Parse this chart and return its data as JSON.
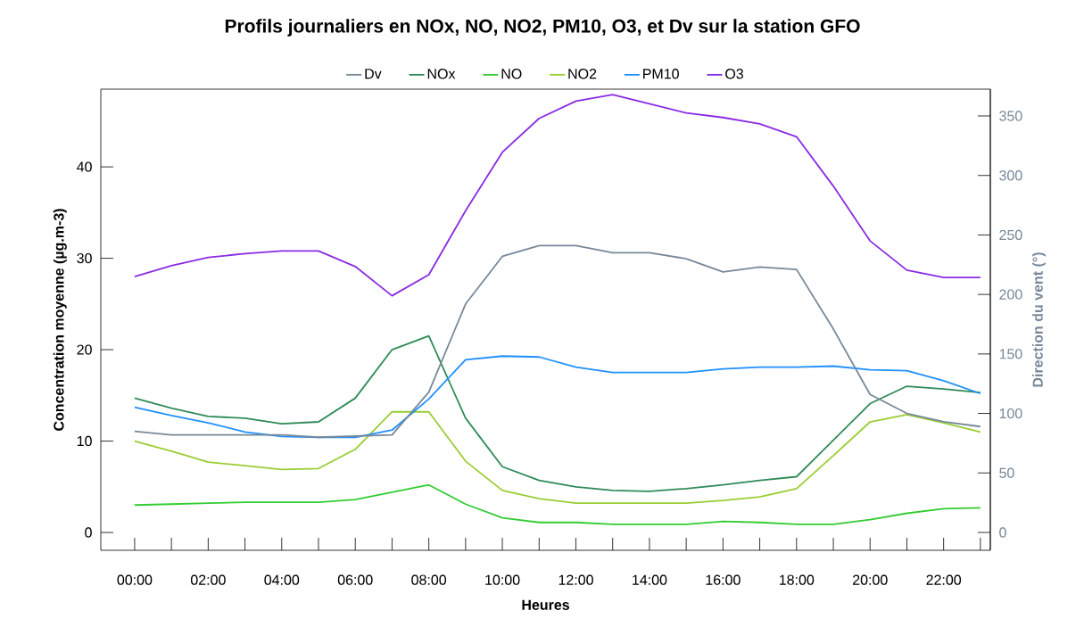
{
  "chart_data": {
    "type": "line",
    "title": "Profils journaliers en NOx, NO, NO2, PM10, O3,  et Dv sur la station GFO",
    "xlabel": "Heures",
    "ylabel": "Concentration moyenne (µg.m-3)",
    "y2label": "Direction du vent (°)",
    "x": [
      0,
      1,
      2,
      3,
      4,
      5,
      6,
      7,
      8,
      9,
      10,
      11,
      12,
      13,
      14,
      15,
      16,
      17,
      18,
      19,
      20,
      21,
      22,
      23
    ],
    "xlim": [
      -0.92,
      23.27
    ],
    "xticks": [
      {
        "value": 0,
        "label": "00:00"
      },
      {
        "value": 1,
        "label": null
      },
      {
        "value": 2,
        "label": "02:00"
      },
      {
        "value": 3,
        "label": null
      },
      {
        "value": 4,
        "label": "04:00"
      },
      {
        "value": 5,
        "label": null
      },
      {
        "value": 6,
        "label": "06:00"
      },
      {
        "value": 7,
        "label": null
      },
      {
        "value": 8,
        "label": "08:00"
      },
      {
        "value": 9,
        "label": null
      },
      {
        "value": 10,
        "label": "10:00"
      },
      {
        "value": 11,
        "label": null
      },
      {
        "value": 12,
        "label": "12:00"
      },
      {
        "value": 13,
        "label": null
      },
      {
        "value": 14,
        "label": "14:00"
      },
      {
        "value": 15,
        "label": null
      },
      {
        "value": 16,
        "label": "16:00"
      },
      {
        "value": 17,
        "label": null
      },
      {
        "value": 18,
        "label": "18:00"
      },
      {
        "value": 19,
        "label": null
      },
      {
        "value": 20,
        "label": "20:00"
      },
      {
        "value": 21,
        "label": null
      },
      {
        "value": 22,
        "label": "22:00"
      },
      {
        "value": 23,
        "label": null
      }
    ],
    "ylim": [
      -1.95,
      48.5
    ],
    "yticks": [
      0,
      10,
      20,
      30,
      40
    ],
    "y2lim": [
      -15,
      372.5
    ],
    "y2ticks": [
      0,
      50,
      100,
      150,
      200,
      250,
      300,
      350
    ],
    "legend": "top",
    "grid": false,
    "series": [
      {
        "name": "Dv",
        "color": "#778899",
        "axis": "y2",
        "values": [
          85,
          82,
          82,
          82,
          82,
          80,
          81,
          82,
          118,
          192,
          232,
          241,
          241,
          235,
          235,
          230,
          219,
          223,
          221,
          171,
          116,
          100,
          93,
          89
        ]
      },
      {
        "name": "NOx",
        "color": "#2e8b57",
        "values": [
          14.7,
          13.6,
          12.7,
          12.5,
          11.9,
          12.1,
          14.7,
          20.0,
          21.5,
          12.5,
          7.2,
          5.7,
          5.0,
          4.6,
          4.5,
          4.8,
          5.2,
          5.7,
          6.1,
          10.1,
          14.1,
          16.0,
          15.7,
          15.3
        ]
      },
      {
        "name": "NO",
        "color": "#32cd32",
        "values": [
          3.0,
          3.1,
          3.2,
          3.3,
          3.3,
          3.3,
          3.6,
          4.4,
          5.2,
          3.1,
          1.6,
          1.1,
          1.1,
          0.9,
          0.9,
          0.9,
          1.2,
          1.1,
          0.9,
          0.9,
          1.4,
          2.1,
          2.6,
          2.7
        ]
      },
      {
        "name": "NO2",
        "color": "#9acd32",
        "values": [
          10.0,
          8.9,
          7.7,
          7.3,
          6.9,
          7.0,
          9.1,
          13.2,
          13.2,
          7.8,
          4.6,
          3.7,
          3.2,
          3.2,
          3.2,
          3.2,
          3.5,
          3.9,
          4.8,
          8.4,
          12.1,
          12.9,
          12.0,
          11.0
        ]
      },
      {
        "name": "PM10",
        "color": "#1e90ff",
        "values": [
          13.7,
          12.8,
          12.0,
          11.0,
          10.5,
          10.4,
          10.4,
          11.2,
          14.6,
          18.9,
          19.3,
          19.2,
          18.1,
          17.5,
          17.5,
          17.5,
          17.9,
          18.1,
          18.1,
          18.2,
          17.8,
          17.7,
          16.6,
          15.2
        ]
      },
      {
        "name": "O3",
        "color": "#8a2be2",
        "values": [
          28.0,
          29.2,
          30.1,
          30.5,
          30.8,
          30.8,
          29.1,
          25.9,
          28.2,
          35.2,
          41.6,
          45.3,
          47.2,
          47.9,
          46.9,
          45.9,
          45.4,
          44.7,
          43.3,
          37.9,
          31.9,
          28.7,
          27.9,
          27.9
        ]
      }
    ]
  }
}
